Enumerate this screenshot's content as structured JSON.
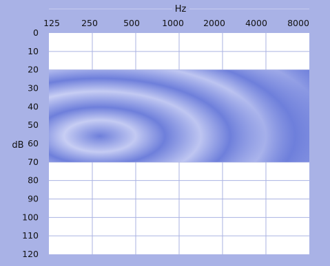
{
  "chart_data": {
    "type": "area",
    "xlabel": "Hz",
    "ylabel": "dB",
    "x_scale": "log2",
    "x_ticks": [
      "125",
      "250",
      "500",
      "1000",
      "2000",
      "4000",
      "8000"
    ],
    "y_ticks": [
      "0",
      "10",
      "20",
      "30",
      "40",
      "50",
      "60",
      "70",
      "80",
      "90",
      "100",
      "110",
      "120"
    ],
    "xlim": [
      125,
      8000
    ],
    "ylim": [
      0,
      120
    ],
    "y_inverted": true,
    "grid": true,
    "band": {
      "y_from": 20,
      "y_to": 70,
      "x_from": 125,
      "x_to": 8000
    }
  },
  "colors": {
    "panel_background": "#a9b2e6",
    "plot_background": "#ffffff",
    "grid_line": "#aab2e2",
    "band_light": "#c7cdf3",
    "band_dark": "#6e7fdb"
  }
}
